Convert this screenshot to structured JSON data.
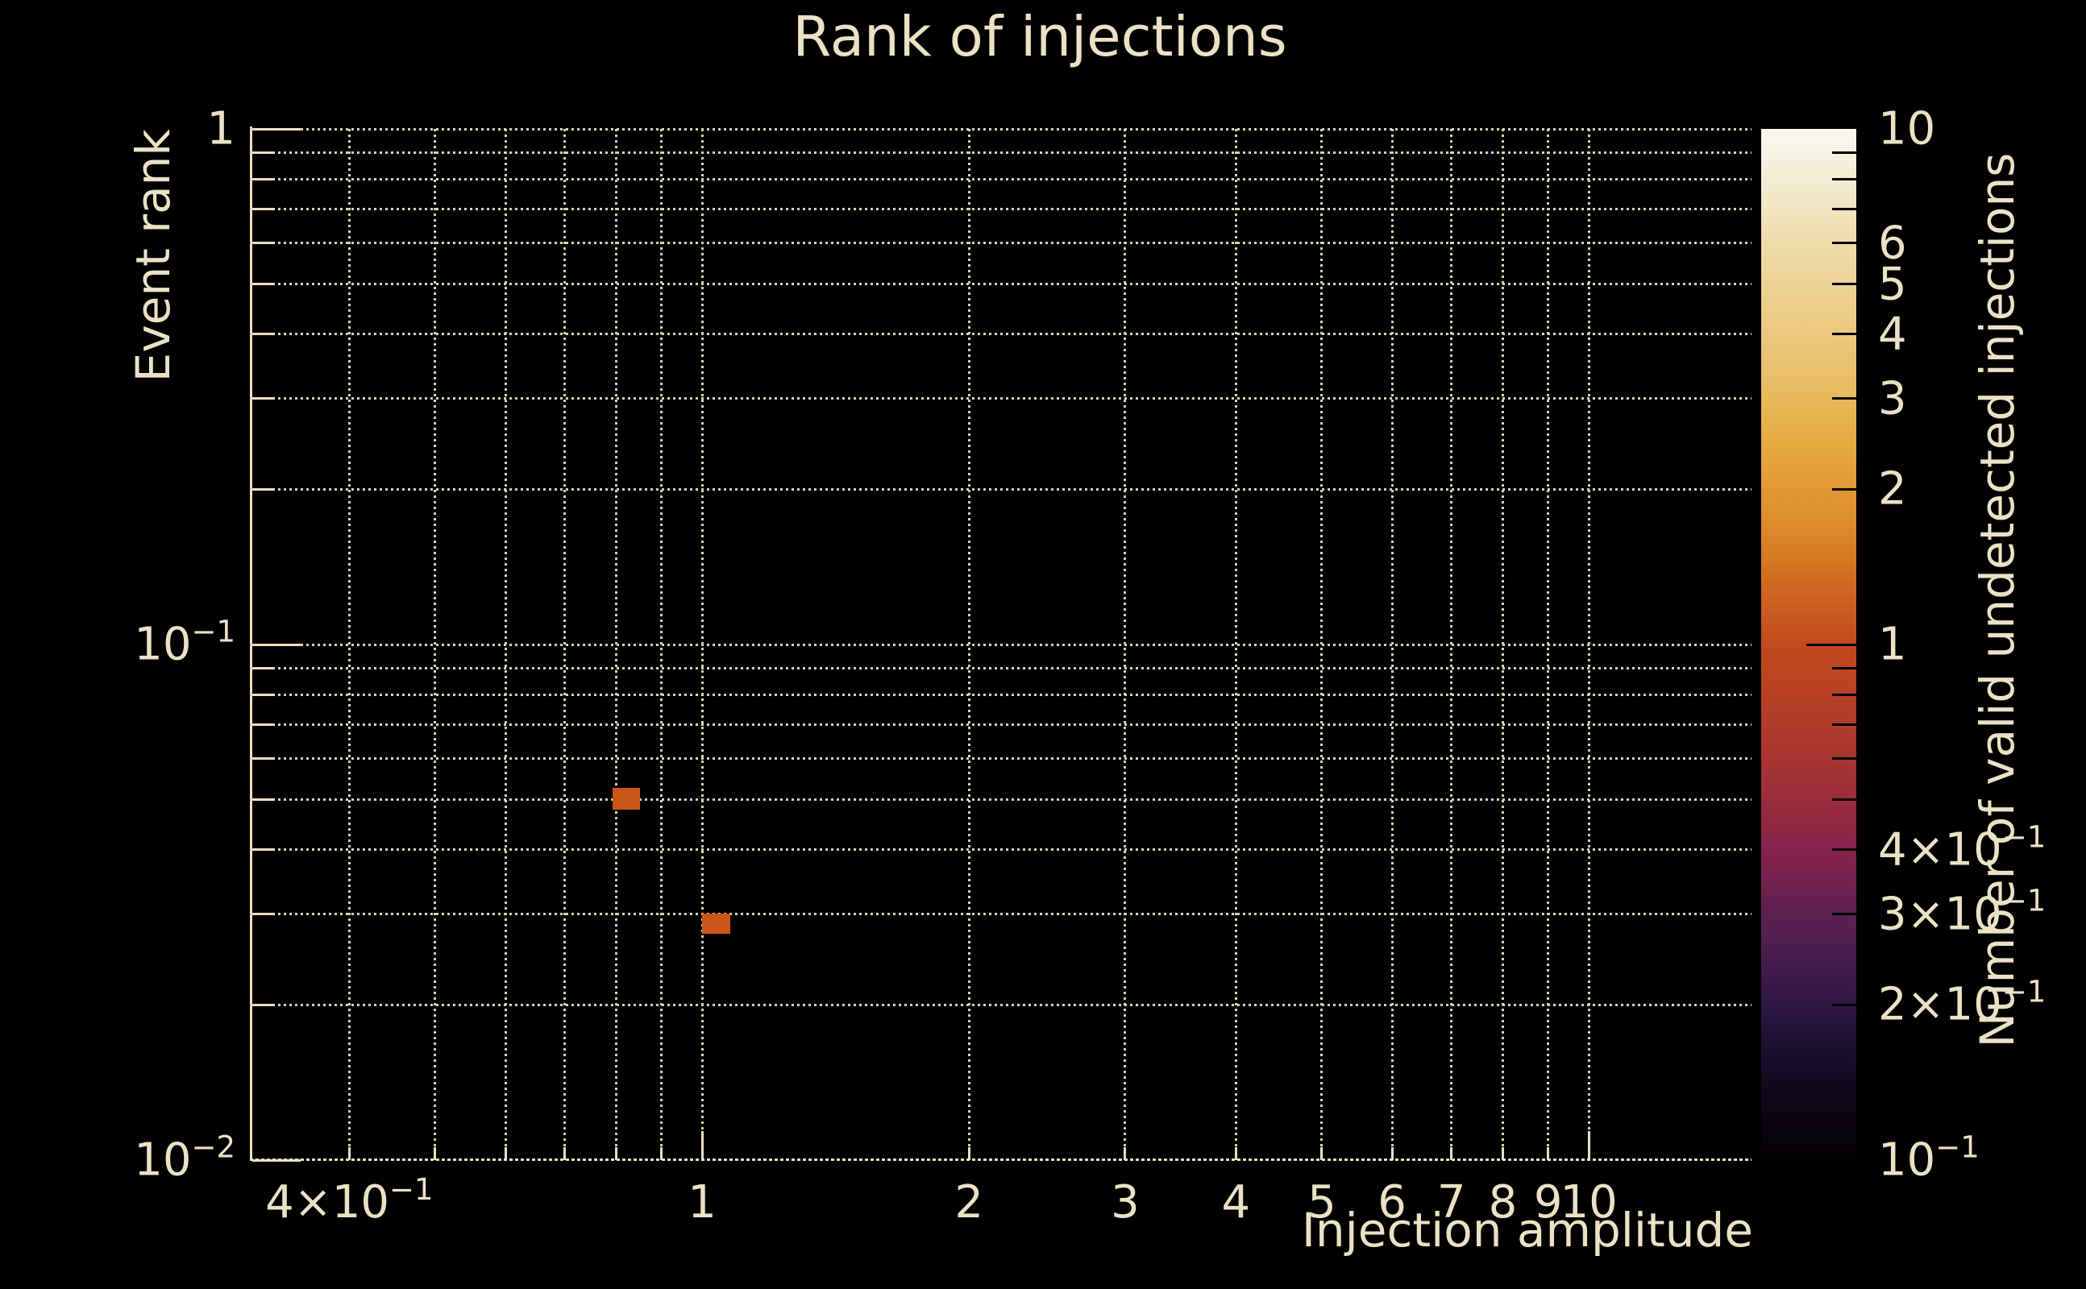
{
  "chart_data": {
    "type": "heatmap",
    "title": "Rank of injections",
    "xlabel": "Injection amplitude",
    "ylabel": "Event rank",
    "xscale": "log",
    "yscale": "log",
    "xlim": [
      0.309,
      15.26
    ],
    "ylim": [
      0.01,
      1.0
    ],
    "grid": "dotted major+minor, both axes",
    "x_ticks": [
      {
        "v": 0.4,
        "label": "4×10^−1"
      },
      {
        "v": 0.5
      },
      {
        "v": 0.6
      },
      {
        "v": 0.7
      },
      {
        "v": 0.8
      },
      {
        "v": 0.9
      },
      {
        "v": 1,
        "label": "1",
        "major": true
      },
      {
        "v": 2,
        "label": "2"
      },
      {
        "v": 3,
        "label": "3"
      },
      {
        "v": 4,
        "label": "4"
      },
      {
        "v": 5,
        "label": "5"
      },
      {
        "v": 6,
        "label": "6"
      },
      {
        "v": 7,
        "label": "7"
      },
      {
        "v": 8,
        "label": "8"
      },
      {
        "v": 9,
        "label": "9"
      },
      {
        "v": 10,
        "label": "10",
        "major": true
      }
    ],
    "y_ticks": [
      {
        "v": 1,
        "label": "1",
        "major": true
      },
      {
        "v": 0.9
      },
      {
        "v": 0.8
      },
      {
        "v": 0.7
      },
      {
        "v": 0.6
      },
      {
        "v": 0.5
      },
      {
        "v": 0.4
      },
      {
        "v": 0.3
      },
      {
        "v": 0.2
      },
      {
        "v": 0.1,
        "label": "10^−1",
        "major": true
      },
      {
        "v": 0.09
      },
      {
        "v": 0.08
      },
      {
        "v": 0.07
      },
      {
        "v": 0.06
      },
      {
        "v": 0.05
      },
      {
        "v": 0.04
      },
      {
        "v": 0.03
      },
      {
        "v": 0.02
      },
      {
        "v": 0.01,
        "label": "10^−2",
        "major": true
      }
    ],
    "bins": [
      {
        "x": [
          0.7926,
          0.8509
        ],
        "y": [
          0.04784,
          0.05271
        ],
        "count": 1
      },
      {
        "x": [
          1.0,
          1.0761
        ],
        "y": [
          0.02749,
          0.03006
        ],
        "count": 1
      }
    ],
    "colorbar": {
      "label": "Number of valid undetected injections",
      "scale": "log",
      "lim": [
        0.1,
        10
      ],
      "ticks": [
        {
          "v": 10,
          "label": "10"
        },
        {
          "v": 9
        },
        {
          "v": 8
        },
        {
          "v": 7
        },
        {
          "v": 6,
          "label": "6"
        },
        {
          "v": 5,
          "label": "5"
        },
        {
          "v": 4,
          "label": "4"
        },
        {
          "v": 3,
          "label": "3"
        },
        {
          "v": 2,
          "label": "2"
        },
        {
          "v": 1,
          "label": "1",
          "major": true
        },
        {
          "v": 0.9
        },
        {
          "v": 0.8
        },
        {
          "v": 0.7
        },
        {
          "v": 0.6
        },
        {
          "v": 0.5
        },
        {
          "v": 0.4,
          "label": "4×10^−1"
        },
        {
          "v": 0.3,
          "label": "3×10^−1"
        },
        {
          "v": 0.2,
          "label": "2×10^−1"
        },
        {
          "v": 0.1,
          "label": "10^−1"
        }
      ],
      "gradient": [
        {
          "frac": 0.0,
          "color": "#040103"
        },
        {
          "frac": 0.06,
          "color": "#0d0718"
        },
        {
          "frac": 0.12,
          "color": "#1e1133"
        },
        {
          "frac": 0.151,
          "color": "#2f1746"
        },
        {
          "frac": 0.2,
          "color": "#491d4f"
        },
        {
          "frac": 0.239,
          "color": "#5e2051"
        },
        {
          "frac": 0.301,
          "color": "#86224b"
        },
        {
          "frac": 0.36,
          "color": "#9e2f38"
        },
        {
          "frac": 0.42,
          "color": "#b13b2a"
        },
        {
          "frac": 0.5,
          "color": "#c24a1e"
        },
        {
          "frac": 0.56,
          "color": "#d06a20"
        },
        {
          "frac": 0.605,
          "color": "#db8628"
        },
        {
          "frac": 0.689,
          "color": "#e6a83e"
        },
        {
          "frac": 0.752,
          "color": "#e9bd64"
        },
        {
          "frac": 0.8,
          "color": "#ebc87e"
        },
        {
          "frac": 0.849,
          "color": "#edd295"
        },
        {
          "frac": 0.889,
          "color": "#eedcab"
        },
        {
          "frac": 0.95,
          "color": "#f3ecd3"
        },
        {
          "frac": 1.0,
          "color": "#f9f7f1"
        }
      ]
    },
    "colors": {
      "background": "#000000",
      "text": "#ebe2c6",
      "grid": "#d9d1b6",
      "spine": "#e9e0c4",
      "bin_count_1": "#cc5518"
    }
  }
}
